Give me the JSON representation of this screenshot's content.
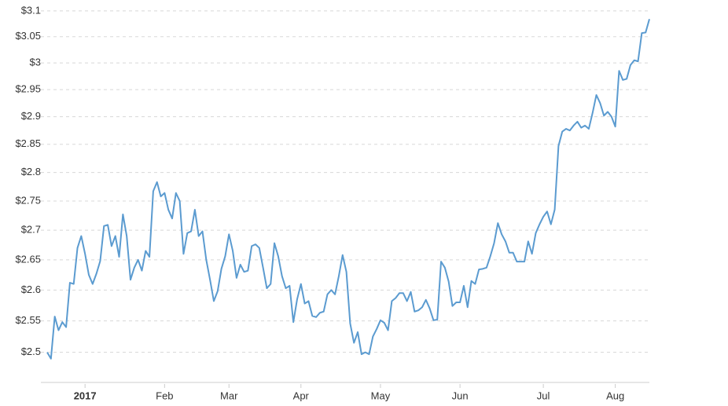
{
  "chart_data": {
    "type": "line",
    "categories": [
      null,
      null,
      null,
      null,
      null,
      null,
      null,
      null,
      null,
      null,
      "2017",
      null,
      null,
      null,
      null,
      null,
      null,
      null,
      null,
      null,
      null,
      null,
      null,
      null,
      null,
      null,
      null,
      null,
      null,
      null,
      null,
      "Feb",
      null,
      null,
      null,
      null,
      null,
      null,
      null,
      null,
      null,
      null,
      null,
      null,
      null,
      null,
      null,
      null,
      "Mar",
      null,
      null,
      null,
      null,
      null,
      null,
      null,
      null,
      null,
      null,
      null,
      null,
      null,
      null,
      null,
      null,
      null,
      null,
      "Apr",
      null,
      null,
      null,
      null,
      null,
      null,
      null,
      null,
      null,
      null,
      null,
      null,
      null,
      null,
      null,
      null,
      null,
      null,
      null,
      null,
      "May",
      null,
      null,
      null,
      null,
      null,
      null,
      null,
      null,
      null,
      null,
      null,
      null,
      null,
      null,
      null,
      null,
      null,
      null,
      null,
      null,
      "Jun",
      null,
      null,
      null,
      null,
      null,
      null,
      null,
      null,
      null,
      null,
      null,
      null,
      null,
      null,
      null,
      null,
      null,
      null,
      null,
      null,
      null,
      "Jul",
      null,
      null,
      null,
      null,
      null,
      null,
      null,
      null,
      null,
      null,
      null,
      null,
      null,
      null,
      null,
      null,
      null,
      null,
      "Aug",
      null,
      null,
      null,
      null,
      null,
      null,
      null,
      null,
      null
    ],
    "values": [
      2.5,
      2.49,
      2.557,
      2.535,
      2.548,
      2.54,
      2.612,
      2.61,
      2.67,
      2.69,
      2.66,
      2.625,
      2.61,
      2.627,
      2.648,
      2.707,
      2.709,
      2.673,
      2.69,
      2.655,
      2.727,
      2.69,
      2.617,
      2.637,
      2.65,
      2.632,
      2.665,
      2.655,
      2.767,
      2.783,
      2.758,
      2.764,
      2.735,
      2.72,
      2.764,
      2.75,
      2.66,
      2.695,
      2.698,
      2.735,
      2.69,
      2.698,
      2.65,
      2.617,
      2.582,
      2.598,
      2.635,
      2.656,
      2.693,
      2.665,
      2.62,
      2.642,
      2.63,
      2.632,
      2.673,
      2.676,
      2.67,
      2.637,
      2.603,
      2.61,
      2.678,
      2.656,
      2.623,
      2.603,
      2.607,
      2.548,
      2.585,
      2.61,
      2.578,
      2.582,
      2.558,
      2.556,
      2.563,
      2.565,
      2.593,
      2.6,
      2.593,
      2.623,
      2.658,
      2.63,
      2.546,
      2.515,
      2.532,
      2.497,
      2.5,
      2.497,
      2.525,
      2.537,
      2.551,
      2.547,
      2.535,
      2.582,
      2.587,
      2.595,
      2.595,
      2.582,
      2.597,
      2.565,
      2.567,
      2.572,
      2.584,
      2.57,
      2.551,
      2.552,
      2.647,
      2.637,
      2.614,
      2.574,
      2.58,
      2.58,
      2.607,
      2.572,
      2.615,
      2.61,
      2.634,
      2.635,
      2.637,
      2.656,
      2.678,
      2.712,
      2.693,
      2.681,
      2.662,
      2.662,
      2.647,
      2.647,
      2.647,
      2.681,
      2.66,
      2.695,
      2.71,
      2.723,
      2.732,
      2.71,
      2.735,
      2.847,
      2.873,
      2.878,
      2.875,
      2.884,
      2.891,
      2.88,
      2.884,
      2.878,
      2.907,
      2.94,
      2.925,
      2.902,
      2.909,
      2.9,
      2.882,
      2.985,
      2.968,
      2.97,
      2.996,
      3.005,
      3.003,
      3.057,
      3.058,
      3.084
    ],
    "color": "#5b9bd0",
    "log_scale": true,
    "grid": true,
    "ylim": [
      2.453,
      3.109
    ],
    "yticks": [
      {
        "value": 2.5,
        "label": "$2.5"
      },
      {
        "value": 2.55,
        "label": "$2.55"
      },
      {
        "value": 2.6,
        "label": "$2.6"
      },
      {
        "value": 2.65,
        "label": "$2.65"
      },
      {
        "value": 2.7,
        "label": "$2.7"
      },
      {
        "value": 2.75,
        "label": "$2.75"
      },
      {
        "value": 2.8,
        "label": "$2.8"
      },
      {
        "value": 2.85,
        "label": "$2.85"
      },
      {
        "value": 2.9,
        "label": "$2.9"
      },
      {
        "value": 2.95,
        "label": "$2.95"
      },
      {
        "value": 3,
        "label": "$3"
      },
      {
        "value": 3.05,
        "label": "$3.05"
      },
      {
        "value": 3.1,
        "label": "$3.1"
      }
    ]
  }
}
